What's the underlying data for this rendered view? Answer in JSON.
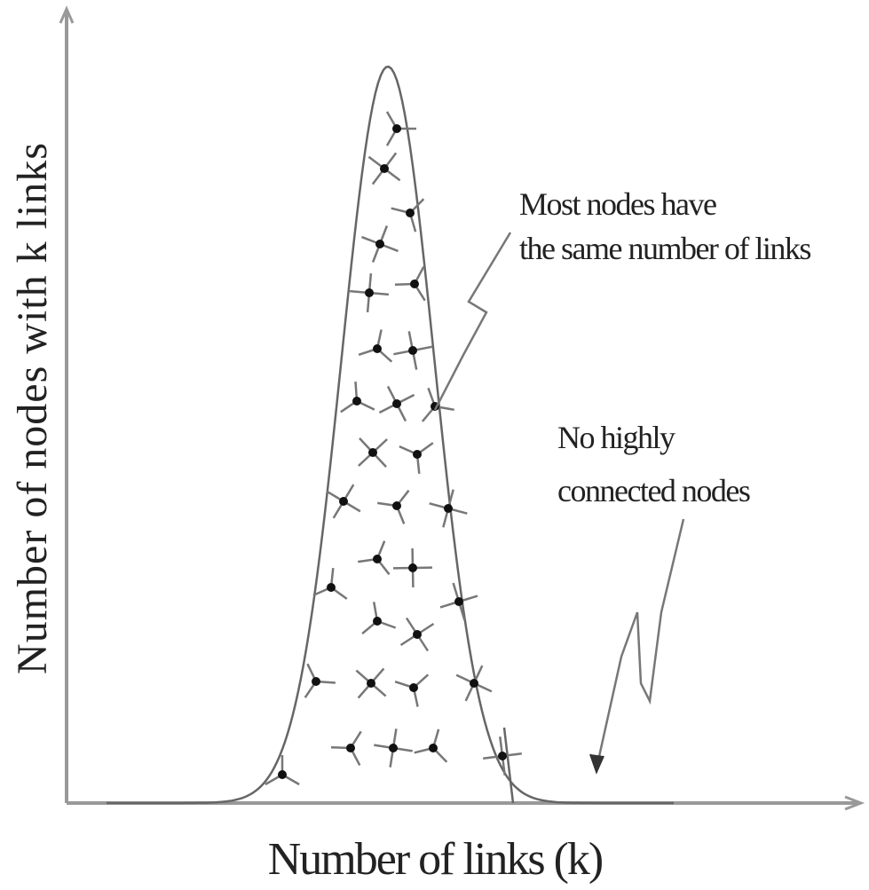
{
  "axes": {
    "y_label": "Number of nodes with k links",
    "x_label": "Number of links (k)"
  },
  "annotations": [
    {
      "lines": [
        "Most nodes have",
        "the same number of links"
      ]
    },
    {
      "lines": [
        "No highly",
        "connected nodes"
      ]
    }
  ]
}
